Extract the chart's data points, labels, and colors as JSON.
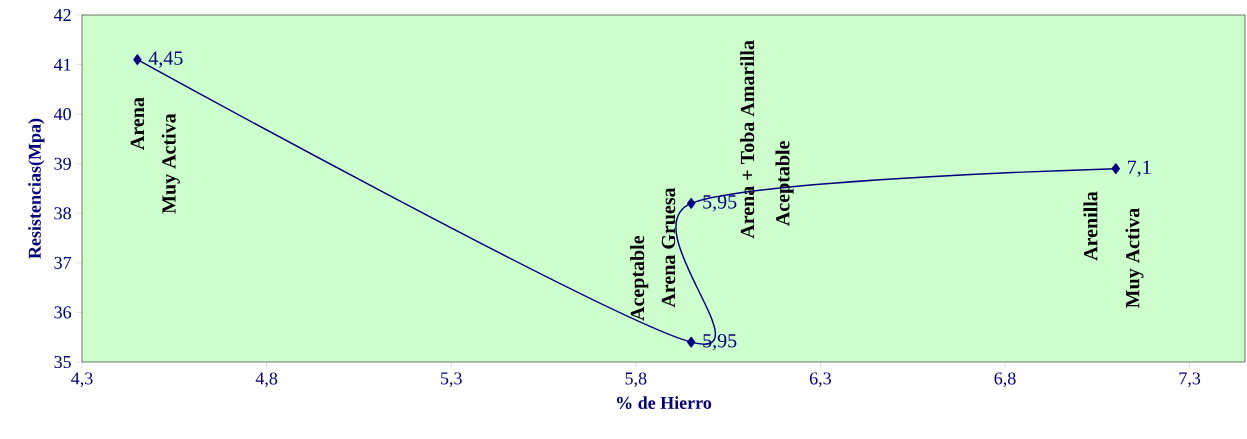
{
  "chart_data": {
    "type": "line",
    "xlabel": "% de Hierro",
    "ylabel": "Resistencias(Mpa)",
    "x": [
      4.45,
      5.95,
      5.95,
      7.1
    ],
    "series": [
      {
        "color": "#000080",
        "values": [
          41.1,
          35.4,
          38.2,
          38.9
        ]
      }
    ],
    "marker": "diamond",
    "line_style": "solid",
    "xlim": [
      4.3,
      7.45
    ],
    "ylim": [
      35,
      42
    ],
    "xticks": [
      {
        "value": 4.3,
        "label": "4,3"
      },
      {
        "value": 4.8,
        "label": "4,8"
      },
      {
        "value": 5.3,
        "label": "5,3"
      },
      {
        "value": 5.8,
        "label": "5,8"
      },
      {
        "value": 6.3,
        "label": "6,3"
      },
      {
        "value": 6.8,
        "label": "6,8"
      },
      {
        "value": 7.3,
        "label": "7,3"
      }
    ],
    "yticks": [
      35,
      36,
      37,
      38,
      39,
      40,
      41,
      42
    ],
    "annotations": [
      {
        "text": "4,45",
        "x": 4.45,
        "y": 41.1
      },
      {
        "text": "5,95",
        "x": 5.95,
        "y": 35.4
      },
      {
        "text": "5,95",
        "x": 5.95,
        "y": 38.2
      },
      {
        "text": "7,1",
        "x": 7.1,
        "y": 38.9
      },
      "Arena",
      "Muy Activa",
      "Aceptable",
      "Arena Gruesa",
      "Arena + Toba Amarilla",
      "Aceptable",
      "Arenilla",
      "Muy Activa"
    ]
  }
}
